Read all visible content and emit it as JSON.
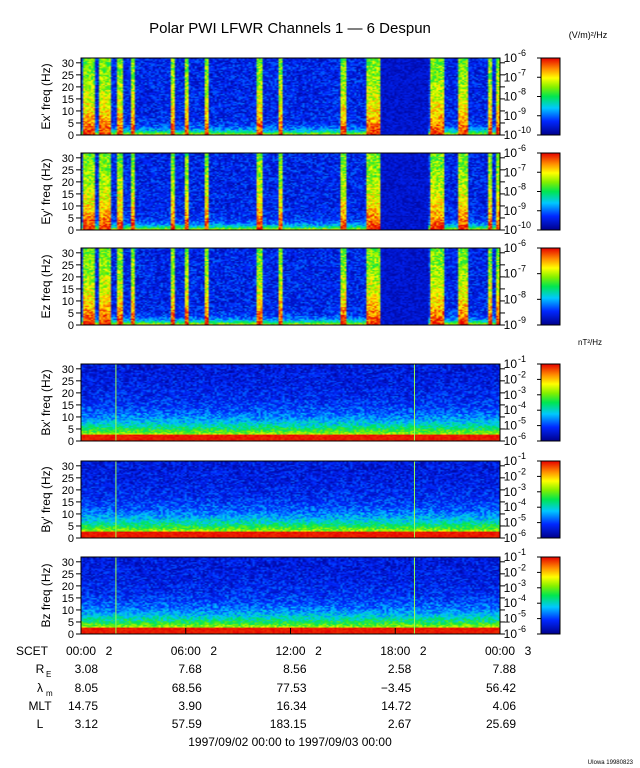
{
  "title": "Polar PWI LFWR Channels 1 — 6 Despun",
  "electric_unit": "(V/m)²/Hz",
  "magnetic_unit": "nT²/Hz",
  "footer_note": "UIowa 19980823",
  "date_range": "1997/09/02 00:00 to 1997/09/03 00:00",
  "time_ticks": [
    {
      "label": "00:00",
      "day": "2",
      "hour": 0
    },
    {
      "label": "06:00",
      "day": "2",
      "hour": 6
    },
    {
      "label": "12:00",
      "day": "2",
      "hour": 12
    },
    {
      "label": "18:00",
      "day": "2",
      "hour": 18
    },
    {
      "label": "00:00",
      "day": "3",
      "hour": 24
    }
  ],
  "ephemeris": [
    {
      "label": "R",
      "sub": "E",
      "values": [
        "3.08",
        "7.68",
        "8.56",
        "2.58",
        "7.88"
      ]
    },
    {
      "label": "λ",
      "sub": "m",
      "values": [
        "8.05",
        "68.56",
        "77.53",
        "−3.45",
        "56.42"
      ]
    },
    {
      "label": "MLT",
      "sub": "",
      "values": [
        "14.75",
        "3.90",
        "16.34",
        "14.72",
        "4.06"
      ]
    },
    {
      "label": "L",
      "sub": "",
      "values": [
        "3.12",
        "57.59",
        "183.15",
        "2.67",
        "25.69"
      ]
    }
  ],
  "scet_label": "SCET",
  "chart_data": {
    "type": "heatmap",
    "x_range_hours": [
      0,
      24
    ],
    "freq_ticks": [
      0,
      5,
      10,
      15,
      20,
      25,
      30
    ],
    "freq_range_hz": [
      0,
      32
    ],
    "panels": [
      {
        "ylabel": "Ex' freq (Hz)",
        "kind": "electric",
        "colorbar_exponents": [
          "-6",
          "-7",
          "-8",
          "-9",
          "-10"
        ],
        "colorbar_range": [
          -10,
          -6
        ]
      },
      {
        "ylabel": "Ey' freq (Hz)",
        "kind": "electric",
        "colorbar_exponents": [
          "-6",
          "-7",
          "-8",
          "-9",
          "-10"
        ],
        "colorbar_range": [
          -10,
          -6
        ]
      },
      {
        "ylabel": "Ez freq (Hz)",
        "kind": "electric",
        "colorbar_exponents": [
          "-6",
          "-7",
          "-8",
          "-9"
        ],
        "colorbar_range": [
          -9,
          -6
        ]
      },
      {
        "ylabel": "Bx' freq (Hz)",
        "kind": "magnetic",
        "colorbar_exponents": [
          "-1",
          "-2",
          "-3",
          "-4",
          "-5",
          "-6"
        ],
        "colorbar_range": [
          -6,
          -1
        ]
      },
      {
        "ylabel": "By' freq (Hz)",
        "kind": "magnetic",
        "colorbar_exponents": [
          "-1",
          "-2",
          "-3",
          "-4",
          "-5",
          "-6"
        ],
        "colorbar_range": [
          -6,
          -1
        ]
      },
      {
        "ylabel": "Bz freq (Hz)",
        "kind": "magnetic",
        "colorbar_exponents": [
          "-1",
          "-2",
          "-3",
          "-4",
          "-5",
          "-6"
        ],
        "colorbar_range": [
          -6,
          -1
        ]
      }
    ],
    "electric_bursts_hours": [
      [
        0.1,
        0.7
      ],
      [
        1.0,
        1.6
      ],
      [
        2.0,
        2.4
      ],
      [
        2.8,
        3.0
      ],
      [
        5.1,
        5.3
      ],
      [
        5.9,
        6.1
      ],
      [
        7.0,
        7.2
      ],
      [
        10.0,
        10.3
      ],
      [
        11.3,
        11.5
      ],
      [
        14.8,
        15.1
      ],
      [
        16.3,
        17.1
      ],
      [
        20.0,
        20.7
      ],
      [
        21.5,
        22.1
      ],
      [
        23.3,
        23.5
      ],
      [
        23.75,
        24.0
      ]
    ],
    "magnetic_spikes_hours": [
      2.0,
      19.1
    ],
    "data_gap_hours": [
      17.0,
      19.8
    ]
  }
}
